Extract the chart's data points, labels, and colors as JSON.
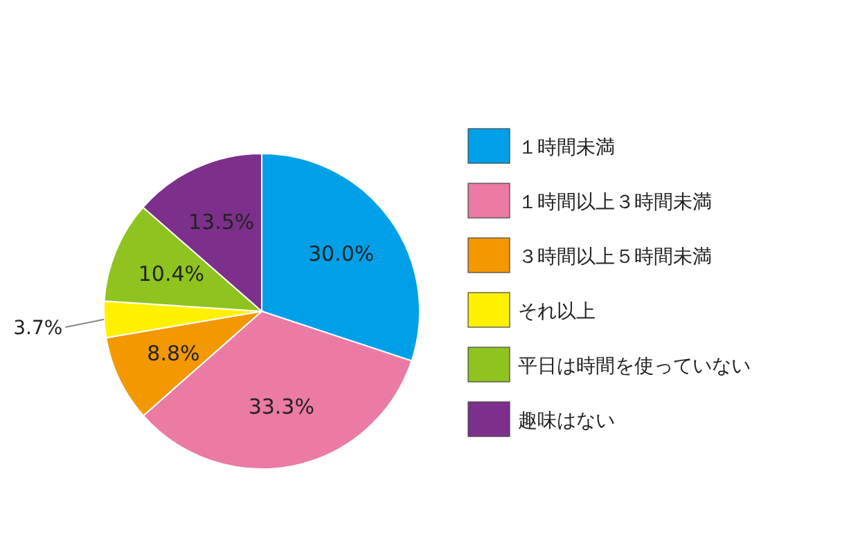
{
  "chart_data": {
    "type": "pie",
    "categories": [
      "１時間未満",
      "１時間以上３時間未満",
      "３時間以上５時間未満",
      "それ以上",
      "平日は時間を使っていない",
      "趣味はない"
    ],
    "values": [
      30.0,
      33.3,
      8.8,
      3.7,
      10.4,
      13.5
    ],
    "value_labels": [
      "30.0%",
      "33.3%",
      "8.8%",
      "3.7%",
      "10.4%",
      "13.5%"
    ],
    "colors": [
      "#00a0e9",
      "#eb7aa4",
      "#f39800",
      "#fff100",
      "#8fc31f",
      "#7d2f8c"
    ],
    "legend": "right"
  }
}
